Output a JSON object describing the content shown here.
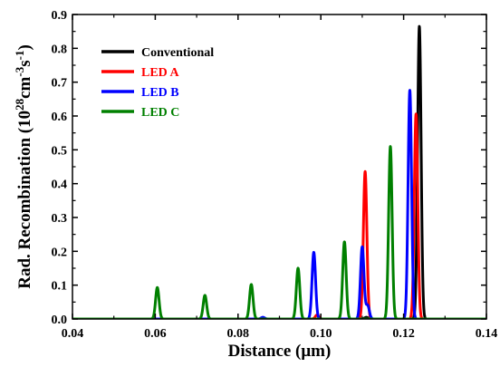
{
  "chart_data": {
    "type": "line",
    "title": "",
    "xlabel": "Distance (μm)",
    "ylabel": "Rad. Recombination (10²⁸cm⁻³s⁻¹)",
    "ylabel_parts": {
      "base": "Rad. Recombination (10",
      "exp1": "28",
      "unit1": "cm",
      "exp2": "-3",
      "unit2": "s",
      "exp3": "-1",
      "close": ")"
    },
    "xlim": [
      0.04,
      0.14
    ],
    "ylim": [
      0.0,
      0.9
    ],
    "xticks": [
      "0.04",
      "0.06",
      "0.08",
      "0.10",
      "0.12",
      "0.14"
    ],
    "yticks": [
      "0.0",
      "0.1",
      "0.2",
      "0.3",
      "0.4",
      "0.5",
      "0.6",
      "0.7",
      "0.8",
      "0.9"
    ],
    "grid": false,
    "legend_position": "top-left",
    "series": [
      {
        "name": "Conventional",
        "color": "#000000",
        "peaks": [
          {
            "x": 0.1238,
            "y": 0.865
          },
          {
            "x": 0.111,
            "y": 0.005
          }
        ]
      },
      {
        "name": "LED A",
        "color": "#ff0000",
        "peaks": [
          {
            "x": 0.0991,
            "y": 0.012
          },
          {
            "x": 0.1107,
            "y": 0.436
          },
          {
            "x": 0.123,
            "y": 0.606
          }
        ]
      },
      {
        "name": "LED B",
        "color": "#0000ff",
        "peaks": [
          {
            "x": 0.086,
            "y": 0.005
          },
          {
            "x": 0.0983,
            "y": 0.197
          },
          {
            "x": 0.11,
            "y": 0.213
          },
          {
            "x": 0.1113,
            "y": 0.04
          },
          {
            "x": 0.1215,
            "y": 0.676
          }
        ]
      },
      {
        "name": "LED C",
        "color": "#008000",
        "peaks": [
          {
            "x": 0.0605,
            "y": 0.093
          },
          {
            "x": 0.072,
            "y": 0.07
          },
          {
            "x": 0.0832,
            "y": 0.102
          },
          {
            "x": 0.0945,
            "y": 0.15
          },
          {
            "x": 0.1057,
            "y": 0.228
          },
          {
            "x": 0.1168,
            "y": 0.51
          }
        ]
      }
    ]
  }
}
